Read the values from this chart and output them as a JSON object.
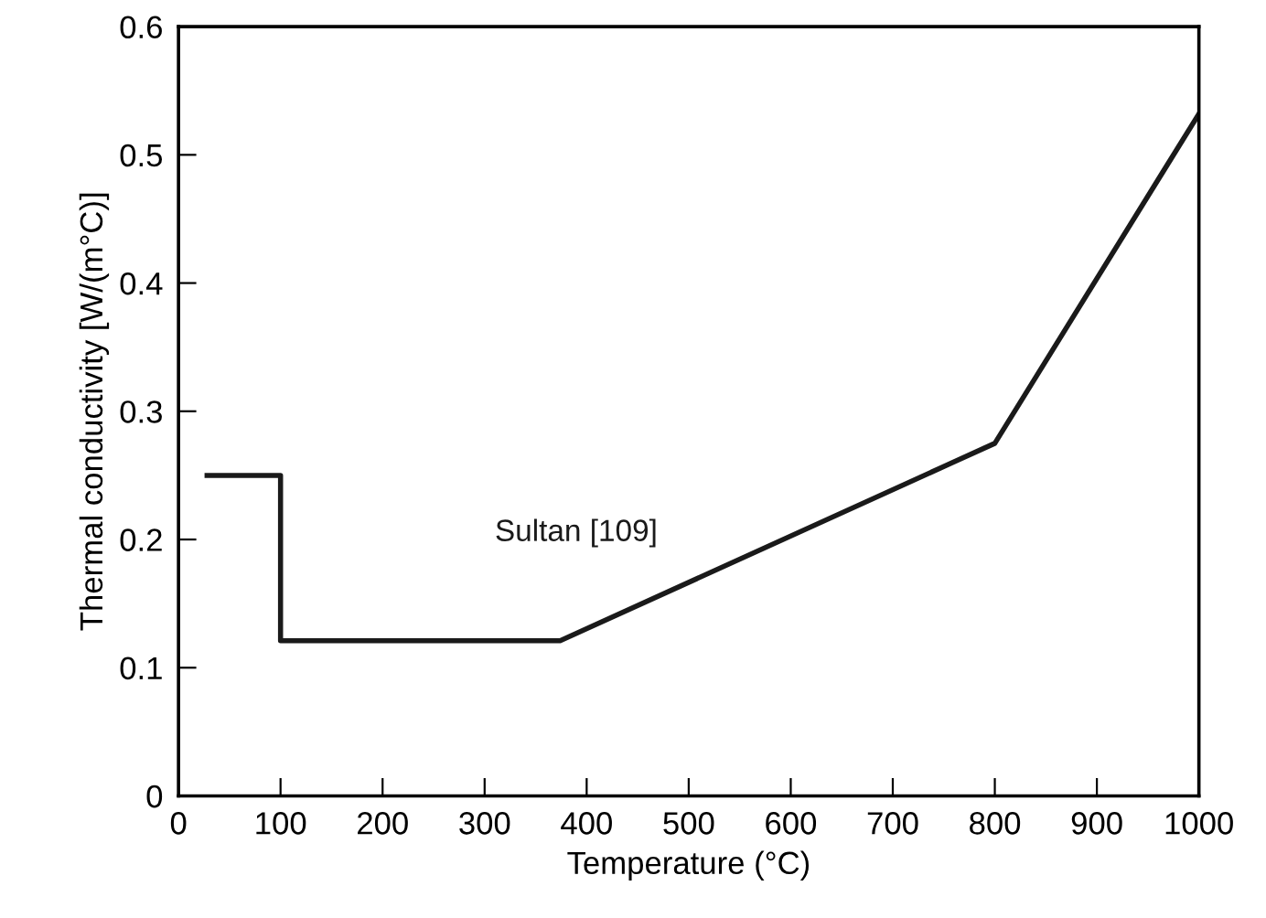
{
  "chart_data": {
    "type": "line",
    "xlabel": "Temperature (°C)",
    "ylabel": "Thermal conductivity [W/(m°C)]",
    "xlim": [
      0,
      1000
    ],
    "ylim": [
      0,
      0.6
    ],
    "xticks": [
      0,
      100,
      200,
      300,
      400,
      500,
      600,
      700,
      800,
      900,
      1000
    ],
    "yticks": [
      0,
      0.1,
      0.2,
      0.3,
      0.4,
      0.5,
      0.6
    ],
    "grid": false,
    "legend": false,
    "marker": "none",
    "line_style": "solid",
    "series": [
      {
        "name": "Sultan [109]",
        "color": "#1a1a1a",
        "x": [
          28,
          100,
          100,
          374,
          800,
          1000
        ],
        "values": [
          0.25,
          0.25,
          0.121,
          0.121,
          0.275,
          0.532
        ]
      }
    ]
  }
}
